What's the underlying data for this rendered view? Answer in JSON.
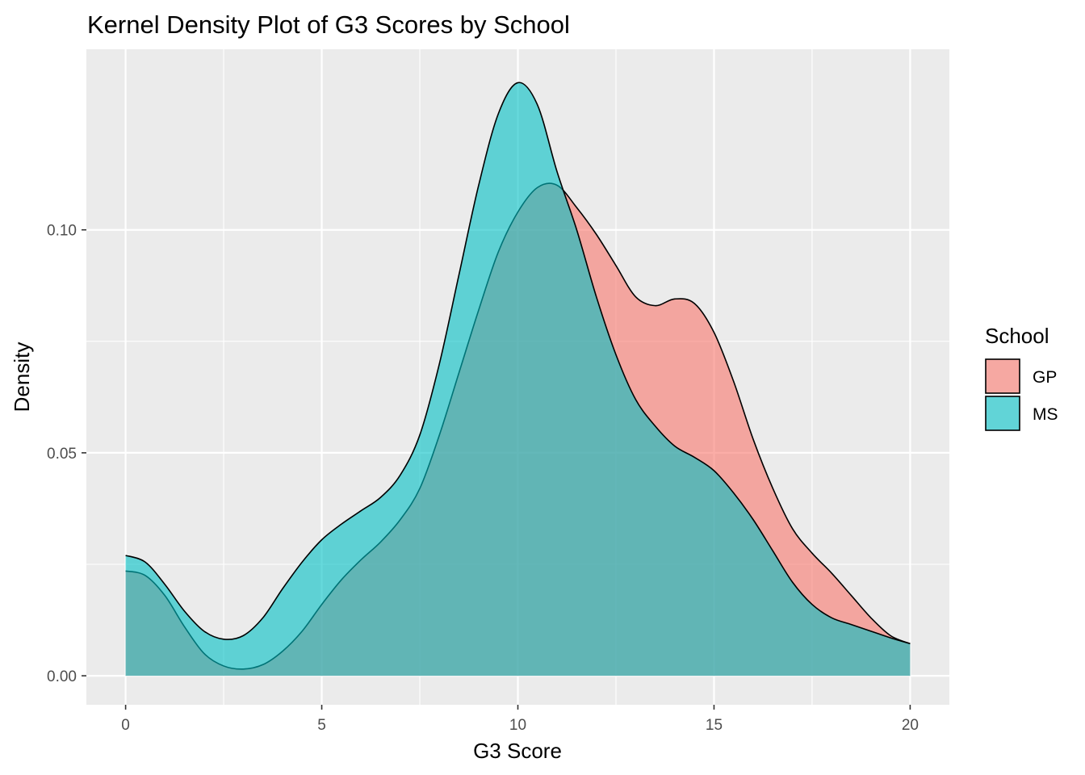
{
  "chart_data": {
    "type": "area",
    "title": "Kernel Density Plot of G3 Scores by School",
    "xlabel": "G3 Score",
    "ylabel": "Density",
    "xlim": [
      -1,
      21
    ],
    "ylim": [
      -0.0065,
      0.1405
    ],
    "x_ticks": [
      0,
      5,
      10,
      15,
      20
    ],
    "x_tick_labels": [
      "0",
      "5",
      "10",
      "15",
      "20"
    ],
    "y_ticks": [
      0,
      0.05,
      0.1
    ],
    "y_tick_labels": [
      "0.00",
      "0.05",
      "0.10"
    ],
    "grid": true,
    "legend": {
      "title": "School",
      "position": "right"
    },
    "series": [
      {
        "name": "GP",
        "color": "#F8766D",
        "x": [
          0,
          0.5,
          1,
          1.5,
          2,
          2.5,
          3,
          3.5,
          4,
          4.5,
          5,
          5.5,
          6,
          6.5,
          7,
          7.5,
          8,
          8.5,
          9,
          9.5,
          10,
          10.5,
          11,
          11.5,
          12,
          12.5,
          13,
          13.5,
          14,
          14.5,
          15,
          15.5,
          16,
          16.5,
          17,
          17.5,
          18,
          18.5,
          19,
          19.5,
          20
        ],
        "y": [
          0.0235,
          0.0225,
          0.018,
          0.011,
          0.005,
          0.0022,
          0.0015,
          0.0025,
          0.0055,
          0.01,
          0.016,
          0.0215,
          0.026,
          0.03,
          0.035,
          0.042,
          0.054,
          0.068,
          0.082,
          0.095,
          0.104,
          0.1095,
          0.11,
          0.105,
          0.099,
          0.092,
          0.085,
          0.083,
          0.0845,
          0.0835,
          0.077,
          0.066,
          0.053,
          0.042,
          0.033,
          0.0275,
          0.023,
          0.018,
          0.013,
          0.009,
          0.0072
        ]
      },
      {
        "name": "MS",
        "color": "#00BFC4",
        "x": [
          0,
          0.5,
          1,
          1.5,
          2,
          2.5,
          3,
          3.5,
          4,
          4.5,
          5,
          5.5,
          6,
          6.5,
          7,
          7.5,
          8,
          8.5,
          9,
          9.5,
          10,
          10.5,
          11,
          11.5,
          12,
          12.5,
          13,
          13.5,
          14,
          14.5,
          15,
          15.5,
          16,
          16.5,
          17,
          17.5,
          18,
          18.5,
          19,
          19.5,
          20
        ],
        "y": [
          0.027,
          0.0255,
          0.0205,
          0.0145,
          0.01,
          0.0082,
          0.009,
          0.013,
          0.0195,
          0.0255,
          0.0305,
          0.034,
          0.037,
          0.04,
          0.045,
          0.054,
          0.07,
          0.09,
          0.11,
          0.126,
          0.133,
          0.128,
          0.113,
          0.1,
          0.085,
          0.072,
          0.062,
          0.056,
          0.0515,
          0.049,
          0.046,
          0.041,
          0.035,
          0.028,
          0.021,
          0.016,
          0.013,
          0.0115,
          0.01,
          0.0085,
          0.0072
        ]
      }
    ]
  }
}
